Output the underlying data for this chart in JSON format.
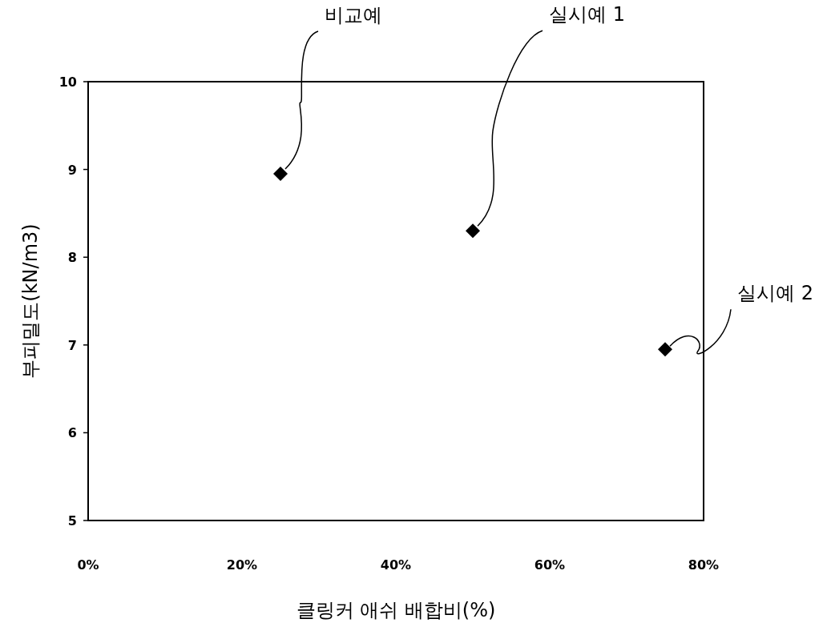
{
  "chart_data": {
    "type": "scatter",
    "xlabel": "클링커 애쉬 배합비(%)",
    "ylabel": "부피밀도(kN/m3)",
    "x": [
      25,
      50,
      75
    ],
    "values": [
      8.95,
      8.3,
      6.95
    ],
    "color": "#000000",
    "marker": "diamond",
    "grid": false,
    "xlim": [
      0,
      80
    ],
    "ylim": [
      5,
      10
    ],
    "xticks": [
      {
        "value": 0,
        "label": "0%"
      },
      {
        "value": 20,
        "label": "20%"
      },
      {
        "value": 40,
        "label": "40%"
      },
      {
        "value": 60,
        "label": "60%"
      },
      {
        "value": 80,
        "label": "80%"
      }
    ],
    "yticks": [
      5,
      6,
      7,
      8,
      9,
      10
    ],
    "annotations": [
      {
        "text": "비교예",
        "x": 25,
        "y": 8.95
      },
      {
        "text": "실시예 1",
        "x": 50,
        "y": 8.3
      },
      {
        "text": "실시예 2",
        "x": 75,
        "y": 6.95
      }
    ]
  }
}
